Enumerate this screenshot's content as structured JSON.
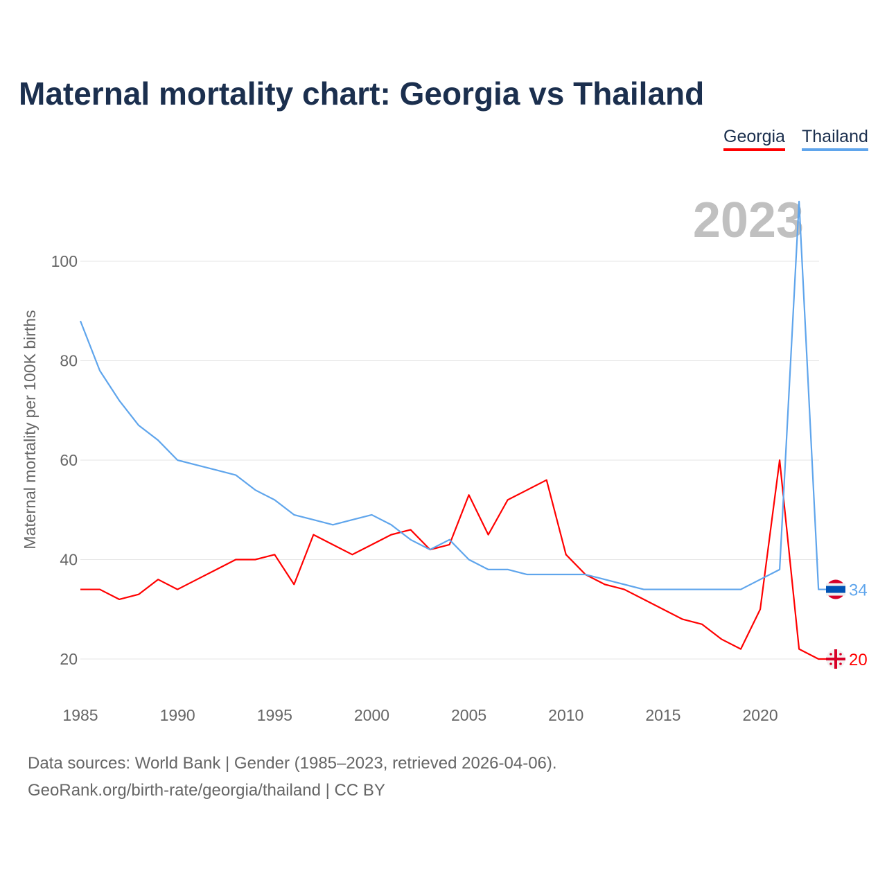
{
  "chart_data": {
    "type": "line",
    "title": "Maternal mortality chart: Georgia vs Thailand",
    "xlabel": "",
    "ylabel": "Maternal mortality per 100K births",
    "xlim": [
      1985,
      2023
    ],
    "ylim": [
      10,
      115
    ],
    "x_ticks": [
      1985,
      1990,
      1995,
      2000,
      2005,
      2010,
      2015,
      2020
    ],
    "y_ticks": [
      20,
      40,
      60,
      80,
      100
    ],
    "grid": true,
    "legend_position": "top-right",
    "year_label": "2023",
    "x": [
      1985,
      1986,
      1987,
      1988,
      1989,
      1990,
      1991,
      1992,
      1993,
      1994,
      1995,
      1996,
      1997,
      1998,
      1999,
      2000,
      2001,
      2002,
      2003,
      2004,
      2005,
      2006,
      2007,
      2008,
      2009,
      2010,
      2011,
      2012,
      2013,
      2014,
      2015,
      2016,
      2017,
      2018,
      2019,
      2020,
      2021,
      2022,
      2023
    ],
    "series": [
      {
        "name": "Georgia",
        "color": "#ff0000",
        "end_label": "20",
        "values": [
          34,
          34,
          32,
          33,
          36,
          34,
          36,
          38,
          40,
          40,
          41,
          35,
          45,
          43,
          41,
          43,
          45,
          46,
          42,
          43,
          53,
          45,
          52,
          54,
          56,
          41,
          37,
          35,
          34,
          32,
          30,
          28,
          27,
          24,
          22,
          30,
          60,
          22,
          20
        ]
      },
      {
        "name": "Thailand",
        "color": "#5fa5ec",
        "end_label": "34",
        "values": [
          88,
          78,
          72,
          67,
          64,
          60,
          59,
          58,
          57,
          54,
          52,
          49,
          48,
          47,
          48,
          49,
          47,
          44,
          42,
          44,
          40,
          38,
          38,
          37,
          37,
          37,
          37,
          36,
          35,
          34,
          34,
          34,
          34,
          34,
          34,
          36,
          38,
          112,
          34
        ]
      }
    ]
  },
  "footer": {
    "line1": "Data sources: World Bank | Gender (1985–2023, retrieved 2026-04-06).",
    "line2": "GeoRank.org/birth-rate/georgia/thailand | CC BY"
  }
}
